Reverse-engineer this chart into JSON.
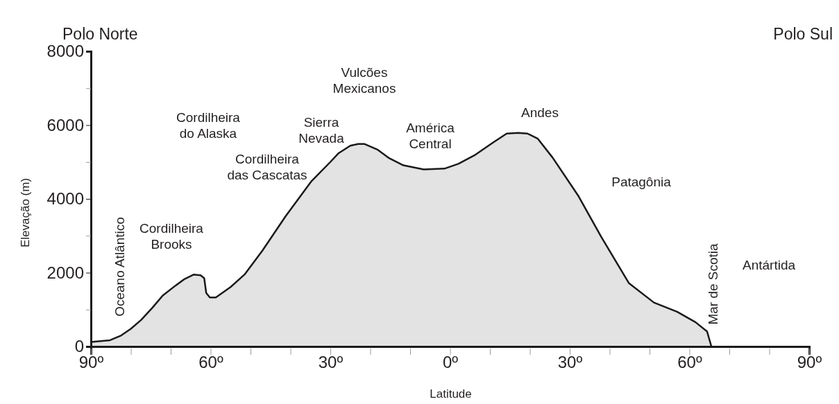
{
  "chart_data": {
    "type": "area",
    "xlabel": "Latitude",
    "ylabel": "Elevação (m)",
    "xlim": [
      90,
      -90
    ],
    "xticks": [
      {
        "value": 90,
        "label": "90º"
      },
      {
        "value": 80,
        "label": null
      },
      {
        "value": 70,
        "label": null
      },
      {
        "value": 60,
        "label": "60º"
      },
      {
        "value": 50,
        "label": null
      },
      {
        "value": 40,
        "label": null
      },
      {
        "value": 30,
        "label": "30º"
      },
      {
        "value": 20,
        "label": null
      },
      {
        "value": 10,
        "label": null
      },
      {
        "value": 0,
        "label": "0º"
      },
      {
        "value": -10,
        "label": null
      },
      {
        "value": -20,
        "label": null
      },
      {
        "value": -30,
        "label": "30º"
      },
      {
        "value": -40,
        "label": null
      },
      {
        "value": -50,
        "label": null
      },
      {
        "value": -60,
        "label": "60º"
      },
      {
        "value": -70,
        "label": null
      },
      {
        "value": -80,
        "label": null
      },
      {
        "value": -90,
        "label": "90º"
      }
    ],
    "ylim": [
      0,
      8000
    ],
    "yticks": [
      0,
      {
        "value": 1000,
        "label": null
      },
      2000,
      {
        "value": 3000,
        "label": null
      },
      4000,
      {
        "value": 5000,
        "label": null
      },
      6000,
      {
        "value": 7000,
        "label": null
      },
      8000
    ],
    "x": [
      90,
      85.2,
      82.4,
      80,
      77.4,
      74.6,
      72,
      68.8,
      66.5,
      64.2,
      62.5,
      61.6,
      61.1,
      60.2,
      58.7,
      55,
      51.5,
      47,
      41.2,
      34.8,
      30,
      27.9,
      25,
      23,
      21.5,
      18.1,
      15.2,
      11.7,
      6.6,
      1.4,
      -2.1,
      -6.1,
      -10.7,
      -14.2,
      -17.1,
      -19.4,
      -22,
      -25.7,
      -32.1,
      -37.9,
      -44.8,
      -51.1,
      -56.9,
      -61.5,
      -64.4,
      -65.5
    ],
    "series": [
      {
        "color": "#e3e3e3",
        "values": [
          120,
          170,
          300,
          480,
          720,
          1050,
          1380,
          1650,
          1830,
          1950,
          1930,
          1850,
          1450,
          1330,
          1330,
          1610,
          1950,
          2600,
          3530,
          4470,
          5000,
          5240,
          5440,
          5490,
          5490,
          5330,
          5100,
          4910,
          4800,
          4820,
          4950,
          5180,
          5520,
          5770,
          5790,
          5770,
          5630,
          5120,
          4090,
          2970,
          1720,
          1190,
          940,
          660,
          410,
          0
        ]
      }
    ],
    "annotations": [
      "Polo Norte",
      "Polo Sul",
      "Oceano Atlântico",
      "Cordilheira Brooks",
      "Cordilheira do Alaska",
      "Cordilheira das Cascatas",
      "Sierra Nevada",
      "Vulcões Mexicanos",
      "América Central",
      "Andes",
      "Patagônia",
      "Mar de Scotia",
      "Antártida"
    ]
  }
}
